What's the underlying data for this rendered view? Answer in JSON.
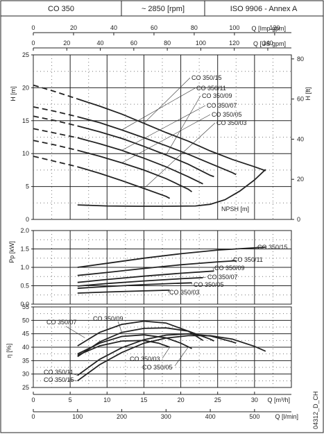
{
  "header": {
    "model": "CO 350",
    "speed": "~ 2850 [rpm]",
    "standard": "ISO 9906 - Annex A"
  },
  "footer_code": "04312_D_CH",
  "top_axes": {
    "imp_gpm": {
      "label": "Q [Imp gpm]",
      "ticks": [
        "0",
        "20",
        "40",
        "60",
        "80",
        "100",
        "120"
      ]
    },
    "us_gpm": {
      "label": "Q [US gpm]",
      "ticks": [
        "0",
        "20",
        "40",
        "60",
        "80",
        "100",
        "120",
        "140"
      ]
    }
  },
  "bottom_axes": {
    "m3h": {
      "label": "Q [m³/h]",
      "ticks": [
        "0",
        "5",
        "10",
        "15",
        "20",
        "25",
        "30"
      ]
    },
    "lmin": {
      "label": "Q [l/min]",
      "ticks": [
        "0",
        "100",
        "200",
        "300",
        "400",
        "500"
      ]
    }
  },
  "chart_data": [
    {
      "type": "line",
      "id": "head",
      "xlabel": "Q [m³/h]",
      "ylabel": "H [m]",
      "ylabel_right": "H [ft]",
      "xlim": [
        0,
        35
      ],
      "ylim": [
        0,
        25
      ],
      "yticks": [
        "0",
        "5",
        "10",
        "15",
        "20",
        "25"
      ],
      "yticks_right": [
        "0",
        "20",
        "40",
        "60",
        "80"
      ],
      "grid": true,
      "series": [
        {
          "name": "CO 350/15",
          "dashed_x_max": 6,
          "points": [
            [
              0,
              20.4
            ],
            [
              3,
              19.4
            ],
            [
              6,
              18.3
            ],
            [
              9,
              17.2
            ],
            [
              12,
              16.0
            ],
            [
              15,
              14.6
            ],
            [
              18,
              13.2
            ],
            [
              21,
              11.9
            ],
            [
              24,
              10.4
            ],
            [
              27,
              9.1
            ],
            [
              30,
              8.0
            ],
            [
              31.5,
              7.4
            ]
          ]
        },
        {
          "name": "CO 350/11",
          "dashed_x_max": 6,
          "points": [
            [
              0,
              17.1
            ],
            [
              3,
              16.4
            ],
            [
              6,
              15.6
            ],
            [
              9,
              14.7
            ],
            [
              12,
              13.6
            ],
            [
              15,
              12.4
            ],
            [
              18,
              11.2
            ],
            [
              21,
              9.9
            ],
            [
              24,
              8.5
            ],
            [
              27,
              7.1
            ],
            [
              27.5,
              6.8
            ]
          ]
        },
        {
          "name": "CO 350/09",
          "dashed_x_max": 6,
          "points": [
            [
              0,
              15.7
            ],
            [
              3,
              15.0
            ],
            [
              6,
              14.2
            ],
            [
              9,
              13.3
            ],
            [
              12,
              12.3
            ],
            [
              15,
              11.1
            ],
            [
              18,
              9.8
            ],
            [
              21,
              8.4
            ],
            [
              24,
              6.7
            ],
            [
              24.5,
              6.5
            ]
          ]
        },
        {
          "name": "CO 350/07",
          "dashed_x_max": 6,
          "points": [
            [
              0,
              13.8
            ],
            [
              3,
              13.1
            ],
            [
              6,
              12.4
            ],
            [
              9,
              11.5
            ],
            [
              12,
              10.5
            ],
            [
              15,
              9.3
            ],
            [
              18,
              8.0
            ],
            [
              21,
              6.5
            ],
            [
              23,
              5.4
            ]
          ]
        },
        {
          "name": "CO 350/05",
          "dashed_x_max": 6,
          "points": [
            [
              0,
              12.0
            ],
            [
              3,
              11.3
            ],
            [
              6,
              10.5
            ],
            [
              9,
              9.6
            ],
            [
              12,
              8.6
            ],
            [
              15,
              7.5
            ],
            [
              18,
              6.2
            ],
            [
              21,
              4.6
            ],
            [
              21.5,
              4.2
            ]
          ]
        },
        {
          "name": "CO 350/03",
          "dashed_x_max": 6,
          "points": [
            [
              0,
              9.6
            ],
            [
              3,
              8.8
            ],
            [
              6,
              8.0
            ],
            [
              9,
              7.0
            ],
            [
              12,
              5.9
            ],
            [
              15,
              4.7
            ],
            [
              18,
              3.5
            ],
            [
              18.5,
              3.2
            ]
          ]
        },
        {
          "name": "NPSH [m]",
          "points": [
            [
              6,
              2.2
            ],
            [
              10,
              2.05
            ],
            [
              14,
              2.0
            ],
            [
              18,
              2.0
            ],
            [
              22,
              2.05
            ],
            [
              24,
              2.3
            ],
            [
              26,
              3.0
            ],
            [
              28,
              4.3
            ],
            [
              30,
              6.0
            ],
            [
              31.5,
              7.6
            ]
          ]
        }
      ]
    },
    {
      "type": "line",
      "id": "power",
      "ylabel": "Pp [kW]",
      "xlim": [
        0,
        35
      ],
      "ylim": [
        0,
        2.0
      ],
      "yticks": [
        "0.0",
        "0.5",
        "1.0",
        "1.5",
        "2.0"
      ],
      "grid": true,
      "series": [
        {
          "name": "CO 350/15",
          "points": [
            [
              6,
              1.0
            ],
            [
              10,
              1.11
            ],
            [
              15,
              1.25
            ],
            [
              20,
              1.37
            ],
            [
              25,
              1.47
            ],
            [
              30,
              1.53
            ],
            [
              31.5,
              1.55
            ]
          ]
        },
        {
          "name": "CO 350/11",
          "points": [
            [
              6,
              0.78
            ],
            [
              10,
              0.86
            ],
            [
              15,
              0.97
            ],
            [
              20,
              1.07
            ],
            [
              25,
              1.15
            ],
            [
              27.5,
              1.18
            ]
          ]
        },
        {
          "name": "CO 350/09",
          "points": [
            [
              6,
              0.59
            ],
            [
              10,
              0.67
            ],
            [
              15,
              0.76
            ],
            [
              20,
              0.84
            ],
            [
              24.5,
              0.9
            ]
          ]
        },
        {
          "name": "CO 350/07",
          "points": [
            [
              6,
              0.49
            ],
            [
              10,
              0.56
            ],
            [
              15,
              0.63
            ],
            [
              20,
              0.69
            ],
            [
              23,
              0.72
            ]
          ]
        },
        {
          "name": "CO 350/05",
          "points": [
            [
              6,
              0.43
            ],
            [
              10,
              0.48
            ],
            [
              15,
              0.53
            ],
            [
              20,
              0.57
            ],
            [
              21.5,
              0.58
            ]
          ]
        },
        {
          "name": "CO 350/03",
          "points": [
            [
              6,
              0.3
            ],
            [
              10,
              0.33
            ],
            [
              15,
              0.36
            ],
            [
              18.5,
              0.38
            ]
          ]
        }
      ]
    },
    {
      "type": "line",
      "id": "efficiency",
      "ylabel": "η [%]",
      "xlim": [
        0,
        35
      ],
      "ylim": [
        25,
        55
      ],
      "yticks": [
        "25",
        "30",
        "35",
        "40",
        "45",
        "50",
        "55"
      ],
      "grid": true,
      "series": [
        {
          "name": "CO 350/15",
          "points": [
            [
              6,
              27.5
            ],
            [
              9,
              33.5
            ],
            [
              12,
              38.0
            ],
            [
              15,
              41.5
            ],
            [
              18,
              43.4
            ],
            [
              21,
              44.3
            ],
            [
              24,
              44.3
            ],
            [
              27,
              43.0
            ],
            [
              30,
              40.3
            ],
            [
              31.5,
              38.5
            ]
          ]
        },
        {
          "name": "CO 350/11",
          "points": [
            [
              6,
              29.5
            ],
            [
              9,
              35.5
            ],
            [
              12,
              39.8
            ],
            [
              15,
              42.8
            ],
            [
              18,
              44.5
            ],
            [
              21,
              45.0
            ],
            [
              24,
              44.2
            ],
            [
              27,
              42.0
            ],
            [
              27.5,
              41.5
            ]
          ]
        },
        {
          "name": "CO 350/09",
          "points": [
            [
              6,
              36.5
            ],
            [
              9,
              42.0
            ],
            [
              12,
              45.5
            ],
            [
              15,
              47.0
            ],
            [
              18,
              47.2
            ],
            [
              21,
              46.0
            ],
            [
              24,
              43.0
            ],
            [
              24.5,
              42.3
            ]
          ]
        },
        {
          "name": "CO 350/07",
          "points": [
            [
              6,
              40.5
            ],
            [
              9,
              45.5
            ],
            [
              12,
              48.5
            ],
            [
              15,
              49.7
            ],
            [
              18,
              49.0
            ],
            [
              21,
              46.0
            ],
            [
              23,
              42.5
            ]
          ]
        },
        {
          "name": "CO 350/05",
          "points": [
            [
              6,
              37.5
            ],
            [
              9,
              41.5
            ],
            [
              12,
              44.0
            ],
            [
              15,
              44.6
            ],
            [
              18,
              43.5
            ],
            [
              20,
              41.5
            ],
            [
              21.5,
              39.5
            ]
          ]
        },
        {
          "name": "CO 350/03",
          "points": [
            [
              6,
              37.0
            ],
            [
              9,
              40.5
            ],
            [
              12,
              42.3
            ],
            [
              15,
              42.5
            ],
            [
              17,
              41.5
            ],
            [
              18.5,
              40.0
            ]
          ]
        }
      ]
    }
  ]
}
